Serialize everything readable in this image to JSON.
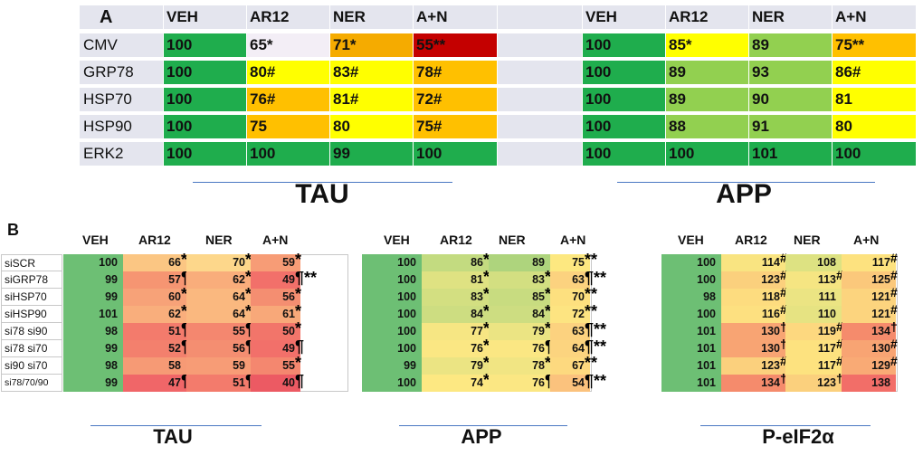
{
  "panel_a": {
    "letter": "A",
    "col_headers": [
      "VEH",
      "AR12",
      "NER",
      "A+N"
    ],
    "row_labels": [
      "CMV",
      "GRP78",
      "HSP70",
      "HSP90",
      "ERK2"
    ],
    "tau": {
      "title": "TAU",
      "cells": [
        [
          {
            "t": "100",
            "c": "#1fad4d"
          },
          {
            "t": "65*",
            "c": "#f3eef6"
          },
          {
            "t": "71*",
            "c": "#f5ab00"
          },
          {
            "t": "55**",
            "c": "#c40000"
          }
        ],
        [
          {
            "t": "100",
            "c": "#1fad4d"
          },
          {
            "t": "80#",
            "c": "#ffff00"
          },
          {
            "t": "83#",
            "c": "#ffff00"
          },
          {
            "t": "78#",
            "c": "#ffc000"
          }
        ],
        [
          {
            "t": "100",
            "c": "#1fad4d"
          },
          {
            "t": "76#",
            "c": "#ffc000"
          },
          {
            "t": "81#",
            "c": "#ffff00"
          },
          {
            "t": "72#",
            "c": "#ffc000"
          }
        ],
        [
          {
            "t": "100",
            "c": "#1fad4d"
          },
          {
            "t": "75",
            "c": "#ffc000"
          },
          {
            "t": "80",
            "c": "#ffff00"
          },
          {
            "t": "75#",
            "c": "#ffc000"
          }
        ],
        [
          {
            "t": "100",
            "c": "#1fad4d"
          },
          {
            "t": "100",
            "c": "#1fad4d"
          },
          {
            "t": "99",
            "c": "#1fad4d"
          },
          {
            "t": "100",
            "c": "#1fad4d"
          }
        ]
      ]
    },
    "app": {
      "title": "APP",
      "cells": [
        [
          {
            "t": "100",
            "c": "#1fad4d"
          },
          {
            "t": "85*",
            "c": "#ffff00"
          },
          {
            "t": "89",
            "c": "#92d050"
          },
          {
            "t": "75**",
            "c": "#ffc000"
          }
        ],
        [
          {
            "t": "100",
            "c": "#1fad4d"
          },
          {
            "t": "89",
            "c": "#92d050"
          },
          {
            "t": "93",
            "c": "#92d050"
          },
          {
            "t": "86#",
            "c": "#ffff00"
          }
        ],
        [
          {
            "t": "100",
            "c": "#1fad4d"
          },
          {
            "t": "89",
            "c": "#92d050"
          },
          {
            "t": "90",
            "c": "#92d050"
          },
          {
            "t": "81",
            "c": "#ffff00"
          }
        ],
        [
          {
            "t": "100",
            "c": "#1fad4d"
          },
          {
            "t": "88",
            "c": "#92d050"
          },
          {
            "t": "91",
            "c": "#92d050"
          },
          {
            "t": "80",
            "c": "#ffff00"
          }
        ],
        [
          {
            "t": "100",
            "c": "#1fad4d"
          },
          {
            "t": "100",
            "c": "#1fad4d"
          },
          {
            "t": "101",
            "c": "#1fad4d"
          },
          {
            "t": "100",
            "c": "#1fad4d"
          }
        ]
      ]
    }
  },
  "panel_b": {
    "letter": "B",
    "col_headers": [
      "VEH",
      "AR12",
      "NER",
      "A+N"
    ],
    "row_labels": [
      "siSCR",
      "siGRP78",
      "siHSP70",
      "siHSP90",
      "si78 si90",
      "si78 si70",
      "si90 si70",
      "si78/70/90"
    ],
    "tables": [
      {
        "title": "TAU",
        "cells": [
          [
            {
              "v": "100",
              "c": "#6dbf74"
            },
            {
              "v": "66",
              "c": "#fbc683",
              "m": "*"
            },
            {
              "v": "70",
              "c": "#fdd78b",
              "m": "*"
            },
            {
              "v": "59",
              "c": "#f79c76",
              "m": "*"
            }
          ],
          [
            {
              "v": "99",
              "c": "#6dbf74"
            },
            {
              "v": "57",
              "c": "#f69572",
              "m": "¶"
            },
            {
              "v": "62",
              "c": "#f9ad7b",
              "m": "*"
            },
            {
              "v": "49",
              "c": "#f2706a",
              "m": "¶**"
            }
          ],
          [
            {
              "v": "99",
              "c": "#6dbf74"
            },
            {
              "v": "60",
              "c": "#f7a278",
              "m": "*"
            },
            {
              "v": "64",
              "c": "#fab87f",
              "m": "*"
            },
            {
              "v": "56",
              "c": "#f48e71",
              "m": "*"
            }
          ],
          [
            {
              "v": "101",
              "c": "#6dbf74"
            },
            {
              "v": "62",
              "c": "#f9ae7c",
              "m": "*"
            },
            {
              "v": "64",
              "c": "#fab87f",
              "m": "*"
            },
            {
              "v": "61",
              "c": "#f8a879",
              "m": "*"
            }
          ],
          [
            {
              "v": "98",
              "c": "#6dbf74"
            },
            {
              "v": "51",
              "c": "#f37b6c",
              "m": "¶"
            },
            {
              "v": "55",
              "c": "#f4876f",
              "m": "¶"
            },
            {
              "v": "50",
              "c": "#f2756a",
              "m": "*"
            }
          ],
          [
            {
              "v": "99",
              "c": "#6dbf74"
            },
            {
              "v": "52",
              "c": "#f3806d",
              "m": "¶"
            },
            {
              "v": "56",
              "c": "#f48e71",
              "m": "¶"
            },
            {
              "v": "49",
              "c": "#f2706a",
              "m": "¶"
            }
          ],
          [
            {
              "v": "98",
              "c": "#6dbf74"
            },
            {
              "v": "58",
              "c": "#f69a75",
              "m": ""
            },
            {
              "v": "59",
              "c": "#f79c76",
              "m": ""
            },
            {
              "v": "55",
              "c": "#f4876f",
              "m": "*"
            }
          ],
          [
            {
              "v": "99",
              "c": "#6dbf74"
            },
            {
              "v": "47",
              "c": "#f06668",
              "m": "¶"
            },
            {
              "v": "51",
              "c": "#f37b6c",
              "m": "¶"
            },
            {
              "v": "40",
              "c": "#ec5a63",
              "m": "¶"
            }
          ]
        ]
      },
      {
        "title": "APP",
        "cells": [
          [
            {
              "v": "100",
              "c": "#6dbf74"
            },
            {
              "v": "86",
              "c": "#c3db80",
              "m": "*"
            },
            {
              "v": "89",
              "c": "#aed47d",
              "m": ""
            },
            {
              "v": "75",
              "c": "#fde880",
              "m": "**"
            }
          ],
          [
            {
              "v": "100",
              "c": "#6dbf74"
            },
            {
              "v": "81",
              "c": "#dfe282",
              "m": "*"
            },
            {
              "v": "83",
              "c": "#d3df81",
              "m": "*"
            },
            {
              "v": "63",
              "c": "#fcd27f",
              "m": "¶**"
            }
          ],
          [
            {
              "v": "100",
              "c": "#6dbf74"
            },
            {
              "v": "83",
              "c": "#d3df81",
              "m": "*"
            },
            {
              "v": "85",
              "c": "#c8dc80",
              "m": "*"
            },
            {
              "v": "70",
              "c": "#fde07f",
              "m": "**"
            }
          ],
          [
            {
              "v": "100",
              "c": "#6dbf74"
            },
            {
              "v": "84",
              "c": "#cddd81",
              "m": "*"
            },
            {
              "v": "84",
              "c": "#cddd81",
              "m": "*"
            },
            {
              "v": "72",
              "c": "#fde481",
              "m": "**"
            }
          ],
          [
            {
              "v": "100",
              "c": "#6dbf74"
            },
            {
              "v": "77",
              "c": "#f6e683",
              "m": "*"
            },
            {
              "v": "79",
              "c": "#ebe483",
              "m": "*"
            },
            {
              "v": "63",
              "c": "#fcd27f",
              "m": "¶**"
            }
          ],
          [
            {
              "v": "100",
              "c": "#6dbf74"
            },
            {
              "v": "76",
              "c": "#fbe783",
              "m": "*"
            },
            {
              "v": "76",
              "c": "#fbe783",
              "m": "¶"
            },
            {
              "v": "64",
              "c": "#fcd47f",
              "m": "¶**"
            }
          ],
          [
            {
              "v": "99",
              "c": "#6dbf74"
            },
            {
              "v": "79",
              "c": "#ebe483",
              "m": "*"
            },
            {
              "v": "78",
              "c": "#f1e583",
              "m": "*"
            },
            {
              "v": "67",
              "c": "#fdd97f",
              "m": "**"
            }
          ],
          [
            {
              "v": "100",
              "c": "#6dbf74"
            },
            {
              "v": "74",
              "c": "#fde882",
              "m": "*"
            },
            {
              "v": "76",
              "c": "#fbe783",
              "m": "¶"
            },
            {
              "v": "54",
              "c": "#fbc27d",
              "m": "¶**"
            }
          ]
        ]
      },
      {
        "title": "P-eIF2α",
        "cells": [
          [
            {
              "v": "100",
              "c": "#6dbf74"
            },
            {
              "v": "114",
              "c": "#f9e481",
              "m": "#"
            },
            {
              "v": "108",
              "c": "#dde282",
              "m": ""
            },
            {
              "v": "117",
              "c": "#fde27f",
              "m": "#"
            }
          ],
          [
            {
              "v": "100",
              "c": "#6dbf74"
            },
            {
              "v": "123",
              "c": "#fbd07d",
              "m": "#"
            },
            {
              "v": "113",
              "c": "#f5e582",
              "m": "#"
            },
            {
              "v": "125",
              "c": "#fbc87b",
              "m": "#"
            }
          ],
          [
            {
              "v": "98",
              "c": "#6dbf74"
            },
            {
              "v": "118",
              "c": "#fddc7f",
              "m": "#"
            },
            {
              "v": "111",
              "c": "#ebe483",
              "m": ""
            },
            {
              "v": "121",
              "c": "#fcd47e",
              "m": "#"
            }
          ],
          [
            {
              "v": "100",
              "c": "#6dbf74"
            },
            {
              "v": "116",
              "c": "#fde080",
              "m": "#"
            },
            {
              "v": "110",
              "c": "#e6e382",
              "m": ""
            },
            {
              "v": "121",
              "c": "#fcd47e",
              "m": "#"
            }
          ],
          [
            {
              "v": "101",
              "c": "#6dbf74"
            },
            {
              "v": "130",
              "c": "#f8a473",
              "m": "†"
            },
            {
              "v": "119",
              "c": "#fdd87f",
              "m": "#"
            },
            {
              "v": "134",
              "c": "#f58b6c",
              "m": "†"
            }
          ],
          [
            {
              "v": "101",
              "c": "#6dbf74"
            },
            {
              "v": "130",
              "c": "#f8a473",
              "m": "†"
            },
            {
              "v": "117",
              "c": "#fde27f",
              "m": "#"
            },
            {
              "v": "130",
              "c": "#f8a473",
              "m": "#"
            }
          ],
          [
            {
              "v": "101",
              "c": "#6dbf74"
            },
            {
              "v": "123",
              "c": "#fbd07d",
              "m": "#"
            },
            {
              "v": "117",
              "c": "#fde27f",
              "m": "#"
            },
            {
              "v": "129",
              "c": "#f9aa75",
              "m": "#"
            }
          ],
          [
            {
              "v": "101",
              "c": "#6dbf74"
            },
            {
              "v": "134",
              "c": "#f58b6c",
              "m": "†"
            },
            {
              "v": "123",
              "c": "#fbd07d",
              "m": "†"
            },
            {
              "v": "138",
              "c": "#f26e68",
              "m": ""
            }
          ]
        ]
      }
    ]
  }
}
